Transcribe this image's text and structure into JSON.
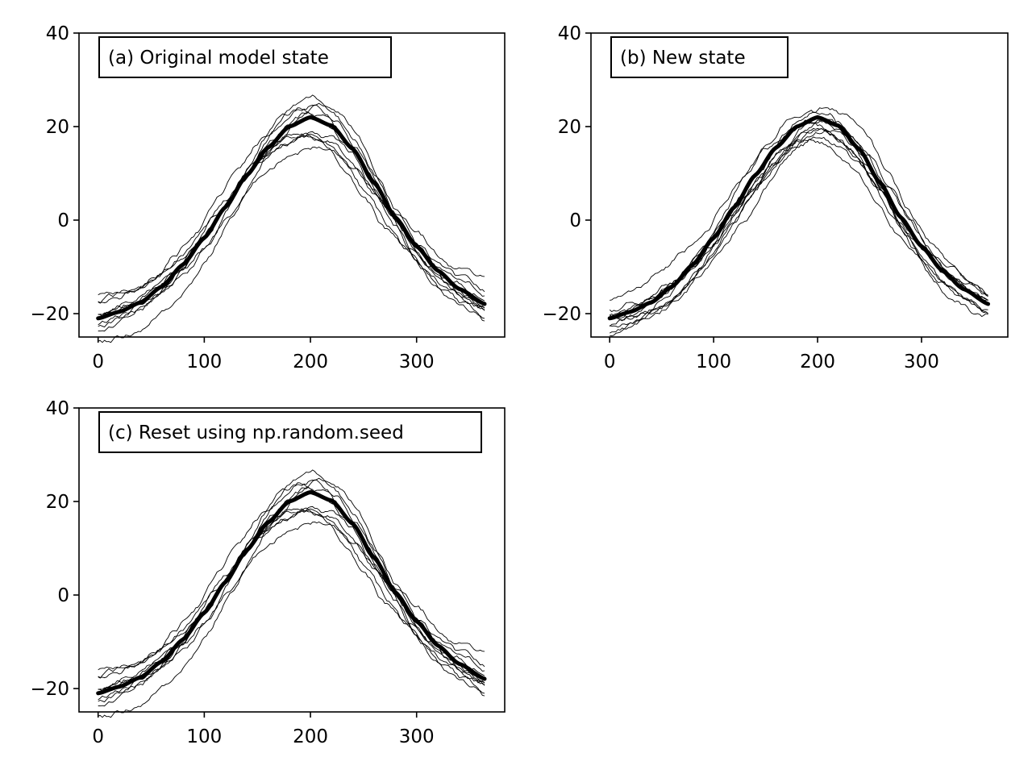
{
  "chart_data": [
    {
      "type": "line",
      "title": "(a)  Original model state",
      "xlabel": "",
      "ylabel": "",
      "xlim": [
        -18,
        383
      ],
      "ylim": [
        -25,
        40
      ],
      "xticks": [
        0,
        100,
        200,
        300
      ],
      "yticks": [
        -20,
        0,
        20,
        40
      ],
      "ytick_labels": [
        "−20",
        "0",
        "20",
        "40"
      ],
      "grid": false,
      "mean_curve": {
        "x": [
          0,
          20,
          40,
          60,
          80,
          100,
          120,
          140,
          160,
          180,
          200,
          220,
          240,
          260,
          280,
          300,
          320,
          340,
          365
        ],
        "y": [
          -21,
          -19.6,
          -17.6,
          -14.2,
          -9.5,
          -3.8,
          2.8,
          9.6,
          15.5,
          20.0,
          22.0,
          20.2,
          15.2,
          8.0,
          0.6,
          -5.6,
          -10.8,
          -14.7,
          -18.0
        ]
      },
      "member_count": 10
    },
    {
      "type": "line",
      "title": "(b)  New state",
      "xlabel": "",
      "ylabel": "",
      "xlim": [
        -18,
        383
      ],
      "ylim": [
        -25,
        40
      ],
      "xticks": [
        0,
        100,
        200,
        300
      ],
      "yticks": [
        -20,
        0,
        20,
        40
      ],
      "ytick_labels": [
        "−20",
        "0",
        "20",
        "40"
      ],
      "grid": false,
      "mean_curve": {
        "x": [
          0,
          20,
          40,
          60,
          80,
          100,
          120,
          140,
          160,
          180,
          200,
          220,
          240,
          260,
          280,
          300,
          320,
          340,
          365
        ],
        "y": [
          -21,
          -19.6,
          -17.6,
          -14.2,
          -9.5,
          -3.8,
          2.8,
          9.6,
          15.5,
          20.0,
          22.0,
          20.2,
          15.2,
          8.0,
          0.6,
          -5.6,
          -10.8,
          -14.7,
          -18.0
        ]
      },
      "member_count": 10
    },
    {
      "type": "line",
      "title": "(c)  Reset using np.random.seed",
      "xlabel": "",
      "ylabel": "",
      "xlim": [
        -18,
        383
      ],
      "ylim": [
        -25,
        40
      ],
      "xticks": [
        0,
        100,
        200,
        300
      ],
      "yticks": [
        -20,
        0,
        20,
        40
      ],
      "ytick_labels": [
        "−20",
        "0",
        "20",
        "40"
      ],
      "grid": false,
      "mean_curve": {
        "x": [
          0,
          20,
          40,
          60,
          80,
          100,
          120,
          140,
          160,
          180,
          200,
          220,
          240,
          260,
          280,
          300,
          320,
          340,
          365
        ],
        "y": [
          -21,
          -19.6,
          -17.6,
          -14.2,
          -9.5,
          -3.8,
          2.8,
          9.6,
          15.5,
          20.0,
          22.0,
          20.2,
          15.2,
          8.0,
          0.6,
          -5.6,
          -10.8,
          -14.7,
          -18.0
        ]
      },
      "member_count": 10
    }
  ]
}
